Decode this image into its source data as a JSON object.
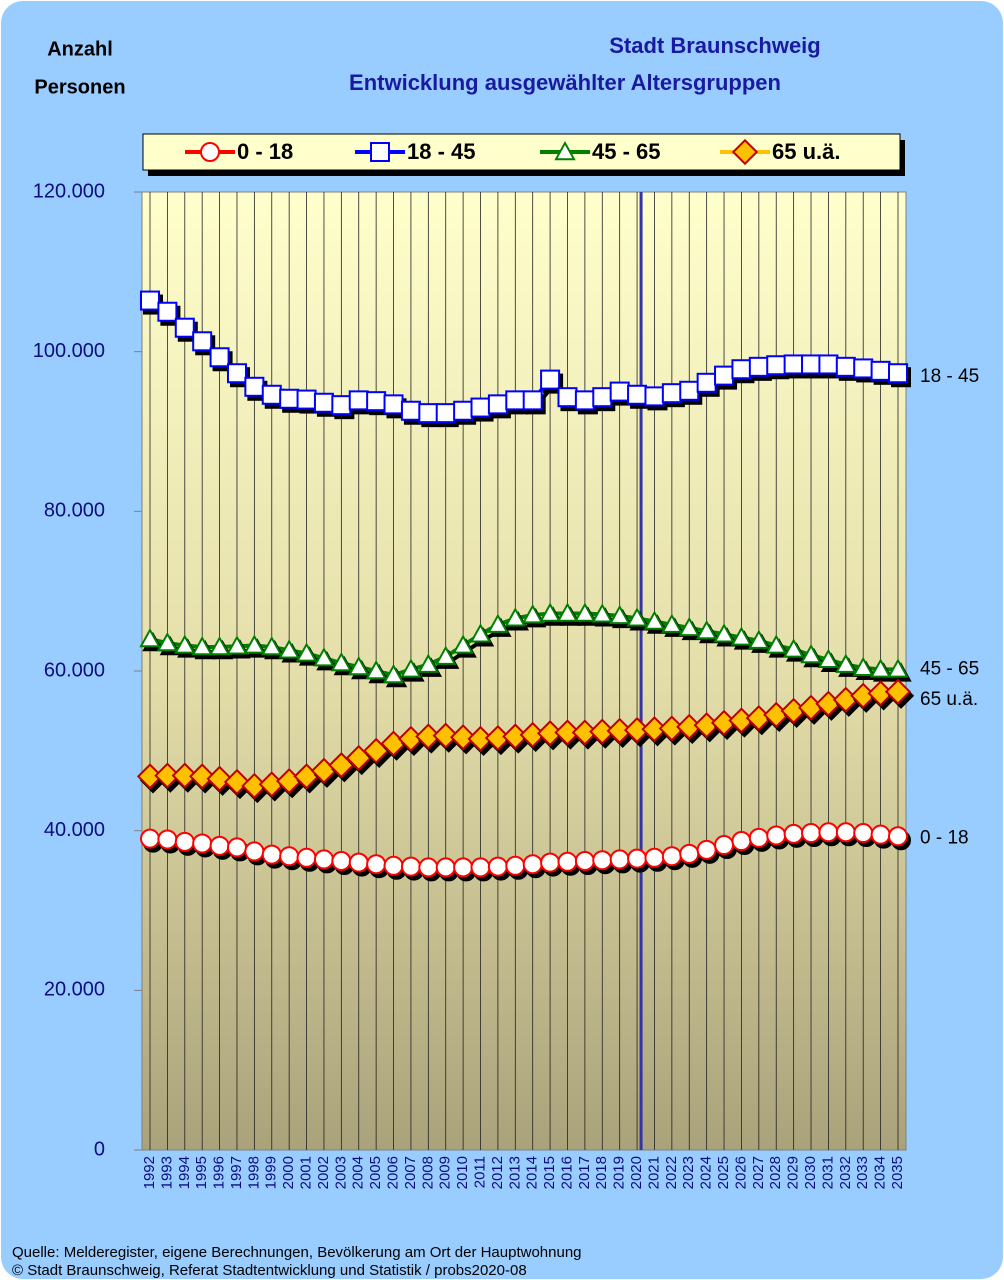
{
  "chart_data": {
    "type": "line",
    "title": "Stadt Braunschweig",
    "subtitle": "Entwicklung ausgewählter Altersgruppen",
    "ylabel": [
      "Anzahl",
      "Personen"
    ],
    "footnotes": [
      "Quelle: Melderegister, eigene Berechnungen, Bevölkerung am Ort der Hauptwohnung",
      "© Stadt Braunschweig, Referat Stadtentwicklung und Statistik / probs2020-08"
    ],
    "categories": [
      "1992",
      "1993",
      "1994",
      "1995",
      "1996",
      "1997",
      "1998",
      "1999",
      "2000",
      "2001",
      "2002",
      "2003",
      "2004",
      "2005",
      "2006",
      "2007",
      "2008",
      "2009",
      "2010",
      "2011",
      "2012",
      "2013",
      "2014",
      "2015",
      "2016",
      "2017",
      "2018",
      "2019",
      "2020",
      "2021",
      "2022",
      "2023",
      "2024",
      "2025",
      "2026",
      "2027",
      "2028",
      "2029",
      "2030",
      "2031",
      "2032",
      "2033",
      "2034",
      "2035"
    ],
    "reference_category": "2020",
    "ylim": [
      0,
      120000
    ],
    "yticks": [
      0,
      {
        "value": 20000,
        "label": "20.000"
      },
      {
        "value": 40000,
        "label": "40.000"
      },
      {
        "value": 60000,
        "label": "60.000"
      },
      {
        "value": 80000,
        "label": "80.000"
      },
      {
        "value": 100000,
        "label": "100.000"
      },
      {
        "value": 120000,
        "label": "120.000"
      }
    ],
    "grid": true,
    "legend": "top",
    "series": [
      {
        "name": "0 - 18",
        "color": "#ff0000",
        "marker": "circle",
        "marker_fill": "#ffffff",
        "values": [
          39000,
          38900,
          38600,
          38400,
          38100,
          37900,
          37400,
          37000,
          36800,
          36600,
          36400,
          36200,
          36000,
          35800,
          35600,
          35500,
          35400,
          35400,
          35400,
          35400,
          35500,
          35600,
          35800,
          36000,
          36100,
          36200,
          36300,
          36400,
          36500,
          36600,
          36800,
          37100,
          37600,
          38200,
          38700,
          39100,
          39400,
          39600,
          39700,
          39800,
          39800,
          39700,
          39500,
          39300
        ]
      },
      {
        "name": "18 - 45",
        "color": "#0000ff",
        "marker": "square",
        "marker_fill": "#ffffff",
        "values": [
          106400,
          105000,
          103000,
          101300,
          99300,
          97300,
          95600,
          94600,
          94100,
          94000,
          93600,
          93300,
          93900,
          93800,
          93400,
          92600,
          92300,
          92300,
          92600,
          93000,
          93400,
          93900,
          93900,
          96500,
          94300,
          93900,
          94300,
          95000,
          94600,
          94400,
          94800,
          95100,
          96100,
          97000,
          97800,
          98100,
          98300,
          98400,
          98400,
          98400,
          98100,
          97900,
          97600,
          97300
        ]
      },
      {
        "name": "45 - 65",
        "color": "#008000",
        "marker": "triangle",
        "marker_fill": "#ffffff",
        "values": [
          64000,
          63500,
          63200,
          63000,
          63000,
          63100,
          63200,
          63000,
          62600,
          62200,
          61600,
          61000,
          60500,
          60000,
          59500,
          60200,
          60800,
          61800,
          63200,
          64600,
          65800,
          66600,
          67000,
          67200,
          67200,
          67200,
          67100,
          66900,
          66600,
          66200,
          65800,
          65400,
          65000,
          64600,
          64200,
          63800,
          63200,
          62700,
          62000,
          61400,
          60800,
          60400,
          60200,
          60200
        ]
      },
      {
        "name": "65 u.ä.",
        "color": "#ffc000",
        "marker": "diamond",
        "marker_fill": "#ffc000",
        "marker_edge": "#c00000",
        "values": [
          46800,
          46900,
          46900,
          46800,
          46500,
          46100,
          45600,
          45800,
          46200,
          46800,
          47500,
          48200,
          49100,
          50000,
          50900,
          51500,
          51800,
          51900,
          51700,
          51500,
          51600,
          51800,
          52000,
          52200,
          52300,
          52300,
          52400,
          52500,
          52600,
          52700,
          52800,
          53000,
          53200,
          53500,
          53800,
          54100,
          54500,
          55000,
          55400,
          55900,
          56400,
          56900,
          57200,
          57400
        ]
      }
    ]
  }
}
